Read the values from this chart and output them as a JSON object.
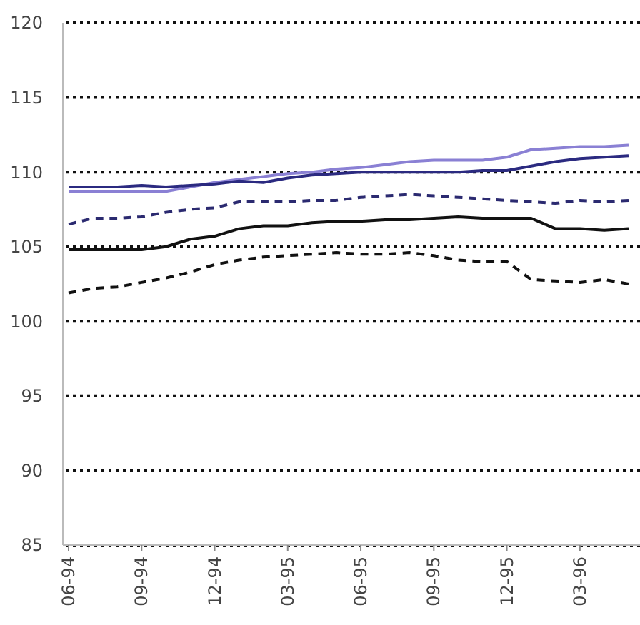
{
  "chart_data": {
    "type": "line",
    "categories": [
      "06-94",
      null,
      null,
      "09-94",
      null,
      null,
      "12-94",
      null,
      null,
      "03-95",
      null,
      null,
      "06-95",
      null,
      null,
      "09-95",
      null,
      null,
      "12-95",
      null,
      null,
      "03-96",
      null,
      null
    ],
    "series": [
      {
        "color": "#8a80d4",
        "line_style": "solid",
        "values": [
          108.7,
          108.7,
          108.7,
          108.7,
          108.7,
          109.0,
          109.3,
          109.5,
          109.7,
          109.9,
          110.0,
          110.2,
          110.3,
          110.5,
          110.7,
          110.8,
          110.8,
          110.8,
          111.0,
          111.5,
          111.6,
          111.7,
          111.7,
          111.8
        ]
      },
      {
        "color": "#2b2a80",
        "line_style": "solid",
        "values": [
          109.0,
          109.0,
          109.0,
          109.1,
          109.0,
          109.1,
          109.2,
          109.4,
          109.3,
          109.6,
          109.8,
          109.9,
          110.0,
          110.0,
          110.0,
          110.0,
          110.0,
          110.1,
          110.1,
          110.4,
          110.7,
          110.9,
          111.0,
          111.1
        ]
      },
      {
        "color": "#2b2a70",
        "line_style": "dashed",
        "values": [
          106.5,
          106.9,
          106.9,
          107.0,
          107.3,
          107.5,
          107.6,
          108.0,
          108.0,
          108.0,
          108.1,
          108.1,
          108.3,
          108.4,
          108.5,
          108.4,
          108.3,
          108.2,
          108.1,
          108.0,
          107.9,
          108.1,
          108.0,
          108.1
        ]
      },
      {
        "color": "#111111",
        "line_style": "solid",
        "values": [
          104.8,
          104.8,
          104.8,
          104.8,
          105.0,
          105.5,
          105.7,
          106.2,
          106.4,
          106.4,
          106.6,
          106.7,
          106.7,
          106.8,
          106.8,
          106.9,
          107.0,
          106.9,
          106.9,
          106.9,
          106.2,
          106.2,
          106.1,
          106.2
        ]
      },
      {
        "color": "#111111",
        "line_style": "dashed",
        "values": [
          101.9,
          102.2,
          102.3,
          102.6,
          102.9,
          103.3,
          103.8,
          104.1,
          104.3,
          104.4,
          104.5,
          104.6,
          104.5,
          104.5,
          104.6,
          104.4,
          104.1,
          104.0,
          104.0,
          102.8,
          102.7,
          102.6,
          102.8,
          102.5
        ]
      }
    ],
    "ylim": [
      85,
      120
    ],
    "yticks": [
      85,
      90,
      95,
      100,
      105,
      110,
      115,
      120
    ],
    "grid": "y",
    "marker": "none"
  }
}
